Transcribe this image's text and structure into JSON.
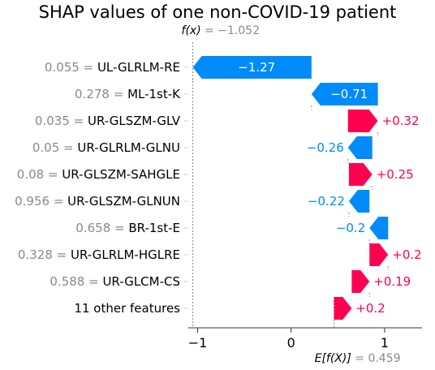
{
  "chart_data": {
    "type": "waterfall",
    "title": "SHAP values of one non-COVID-19 patient",
    "fx": {
      "label": "f(x)",
      "equals": " = ",
      "value": "−1.052",
      "x": -1.052
    },
    "base": {
      "label": "E[f(X)]",
      "equals": " = ",
      "value": "0.459",
      "x": 0.459
    },
    "xlim": [
      -1.1,
      1.4
    ],
    "xticks": [
      {
        "value": -1,
        "label": "−1"
      },
      {
        "value": 0,
        "label": "0"
      },
      {
        "value": 1,
        "label": "1"
      }
    ],
    "colors": {
      "positive": "#ff0051",
      "negative": "#008bfb",
      "gray": "#8a8a8a"
    },
    "features": [
      {
        "value": "0.055",
        "name": "UL-GLRLM-RE",
        "shap": -1.27,
        "label": "−1.27",
        "start": 0.218,
        "end": -1.052
      },
      {
        "value": "0.278",
        "name": "ML-1st-K",
        "shap": -0.71,
        "label": "−0.71",
        "start": 0.928,
        "end": 0.218
      },
      {
        "value": "0.035",
        "name": "UR-GLSZM-GLV",
        "shap": 0.32,
        "label": "+0.32",
        "start": 0.608,
        "end": 0.928
      },
      {
        "value": "0.05",
        "name": "UR-GLRLM-GLNU",
        "shap": -0.26,
        "label": "−0.26",
        "start": 0.868,
        "end": 0.608
      },
      {
        "value": "0.08",
        "name": "UR-GLSZM-SAHGLE",
        "shap": 0.25,
        "label": "+0.25",
        "start": 0.618,
        "end": 0.868
      },
      {
        "value": "0.956",
        "name": "UR-GLSZM-GLNUN",
        "shap": -0.22,
        "label": "−0.22",
        "start": 0.838,
        "end": 0.618
      },
      {
        "value": "0.658",
        "name": "BR-1st-E",
        "shap": -0.2,
        "label": "−0.2",
        "start": 1.038,
        "end": 0.838
      },
      {
        "value": "0.328",
        "name": "UR-GLRLM-HGLRE",
        "shap": 0.2,
        "label": "+0.2",
        "start": 0.838,
        "end": 1.038
      },
      {
        "value": "0.588",
        "name": "UR-GLCM-CS",
        "shap": 0.19,
        "label": "+0.19",
        "start": 0.648,
        "end": 0.838
      },
      {
        "value": "",
        "name": "11 other features",
        "shap": 0.2,
        "label": "+0.2",
        "start": 0.459,
        "end": 0.648
      }
    ],
    "equals_sign": " = "
  }
}
